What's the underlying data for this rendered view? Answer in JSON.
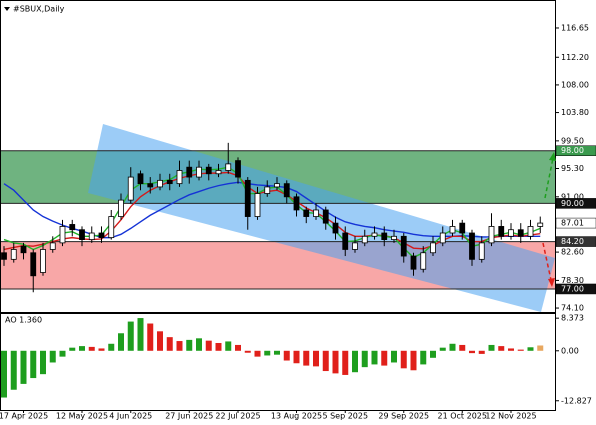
{
  "chart_data": [
    {
      "type": "candlestick",
      "title": "#SBUX,Daily",
      "categories": [
        null,
        null,
        "17 Apr 2025",
        null,
        null,
        null,
        null,
        null,
        "12 May 2025",
        null,
        null,
        null,
        null,
        "4 Jun 2025",
        null,
        null,
        null,
        null,
        null,
        "27 Jun 2025",
        null,
        null,
        null,
        null,
        "22 Jul 2025",
        null,
        null,
        null,
        null,
        null,
        "13 Aug 2025",
        null,
        null,
        null,
        null,
        "5 Sep 2025",
        null,
        null,
        null,
        null,
        null,
        "29 Sep 2025",
        null,
        null,
        null,
        null,
        null,
        "21 Oct 2025",
        null,
        null,
        null,
        null,
        "12 Nov 2025",
        null,
        null,
        null
      ],
      "open": [
        82.5,
        81.5,
        83.5,
        82.5,
        79.5,
        83,
        84,
        86.8,
        86,
        84.5,
        85.5,
        84.8,
        88,
        90.5,
        94.5,
        93,
        92.5,
        93.5,
        93,
        95.5,
        94,
        95.5,
        94.5,
        95,
        96.5,
        93.5,
        88,
        91.5,
        92.5,
        93,
        91,
        89,
        88,
        89,
        87,
        85.5,
        83,
        84,
        85,
        85.5,
        84.5,
        85,
        82,
        80,
        82.5,
        84,
        85.5,
        87,
        85.5,
        81.5,
        84,
        86.5,
        85,
        86,
        85,
        86.5
      ],
      "high": [
        83.5,
        84,
        84,
        83,
        84,
        85,
        87.5,
        87.5,
        86.5,
        86.5,
        86.5,
        89,
        91.5,
        95.5,
        95,
        94,
        94.5,
        94.5,
        96.5,
        96.5,
        96.5,
        96,
        96,
        99.2,
        97,
        94,
        92.5,
        93.5,
        94,
        93.5,
        91.5,
        89.5,
        90,
        89.5,
        88,
        86.5,
        85,
        86,
        86.5,
        86.5,
        86,
        85.5,
        82.5,
        83.5,
        85,
        86.5,
        87.5,
        87.5,
        86,
        85,
        88.5,
        87.5,
        87,
        87,
        87.5,
        88
      ],
      "low": [
        80.5,
        81,
        81.5,
        76.5,
        79,
        82.5,
        83.5,
        85,
        83.5,
        84,
        84,
        84.5,
        87.5,
        90,
        92,
        91.5,
        92,
        92,
        92.5,
        93,
        93.5,
        93.5,
        94,
        94.5,
        93,
        86,
        87.5,
        91,
        92,
        90,
        88,
        87,
        87.5,
        86,
        84.5,
        82,
        82.5,
        83.5,
        84.5,
        83.5,
        84,
        81,
        79,
        79.5,
        82,
        83.5,
        85,
        84.5,
        80.5,
        81,
        83.5,
        84.5,
        84.5,
        84,
        84.5,
        85.5
      ],
      "close": [
        81.5,
        83,
        82.5,
        79,
        83,
        84,
        86.5,
        86,
        84.5,
        85.5,
        84.8,
        88,
        90.5,
        94,
        93,
        92.5,
        93.5,
        93,
        95,
        94,
        95.5,
        94.5,
        95,
        96,
        94,
        88,
        91.5,
        92.5,
        93,
        91,
        89,
        88,
        89,
        87,
        85.5,
        83,
        84,
        85,
        85.5,
        84.5,
        85,
        82,
        80,
        82.5,
        84,
        85.5,
        86.5,
        85.5,
        81.5,
        84,
        86.5,
        85,
        86,
        85,
        86.5,
        87.01
      ],
      "candle_color": "#000000",
      "series": [
        {
          "color": "#1533d6",
          "values": [
            93,
            92,
            90.5,
            89,
            88,
            87.3,
            86.7,
            86.2,
            85.8,
            85.3,
            84.8,
            84.8,
            85.3,
            86.2,
            87.2,
            88.2,
            89,
            89.8,
            90.6,
            91.3,
            91.8,
            92.3,
            92.7,
            93,
            93.2,
            93,
            92.8,
            92.7,
            92.6,
            92.4,
            91.8,
            90.8,
            89.8,
            88.8,
            87.9,
            87.2,
            86.8,
            86.5,
            86.3,
            86,
            85.8,
            85.6,
            85.3,
            85.1,
            85,
            85,
            85,
            85.1,
            85,
            84.9,
            84.9,
            85,
            85,
            85,
            85,
            85
          ]
        },
        {
          "color": "#d41a1a",
          "values": [
            83,
            83.3,
            83.6,
            83.5,
            83.8,
            84.2,
            84.6,
            84.8,
            84.6,
            84.5,
            84.6,
            85.8,
            87.5,
            89.5,
            91,
            92,
            92.7,
            93.3,
            93.8,
            94.2,
            94.5,
            94.6,
            94.6,
            94.7,
            94.2,
            92.5,
            91.5,
            91.8,
            92,
            91.3,
            90.3,
            89.3,
            88.6,
            87.8,
            86.8,
            85.6,
            85,
            85,
            85.2,
            85.1,
            84.8,
            84,
            83.2,
            83.1,
            83.6,
            84.4,
            85,
            85,
            84.2,
            84.2,
            84.8,
            85,
            85.2,
            85,
            85.2,
            85.4
          ]
        },
        {
          "color": "#22b32a",
          "values": [
            84.5,
            84,
            83.8,
            83,
            83.6,
            84.5,
            85.5,
            85.7,
            85,
            85,
            85.2,
            87,
            89.5,
            92,
            93,
            93,
            93.3,
            93.6,
            94.5,
            94.8,
            95.2,
            95.1,
            95.2,
            95.5,
            94.5,
            91.5,
            91.5,
            92.3,
            92.5,
            91.3,
            89.8,
            88.6,
            88.5,
            87.2,
            85.8,
            84.2,
            84.3,
            84.8,
            85.2,
            85,
            84.8,
            83.2,
            81.8,
            82.5,
            83.8,
            85.2,
            86,
            85.5,
            83.5,
            83.8,
            85,
            85.3,
            85.6,
            85.2,
            85.6,
            86.2
          ]
        }
      ],
      "zones": [
        {
          "lim": [
            90,
            98
          ],
          "color": "#3f9a55"
        },
        {
          "lim": [
            77,
            84.2
          ],
          "color": "#f58a8a"
        }
      ],
      "levels": [
        {
          "value": 98,
          "label": "98.00",
          "color": "#3a9a4e",
          "text_color": "#ffffff",
          "line": true
        },
        {
          "value": 90,
          "label": "90.00",
          "color": "#111111",
          "text_color": "#ffffff",
          "line": true
        },
        {
          "value": 87.01,
          "label": "87.01",
          "color": "#ffffff",
          "text_color": "#000000",
          "line": false
        },
        {
          "value": 84.2,
          "label": "84.20",
          "color": "#333333",
          "text_color": "#ffffff",
          "line": true
        },
        {
          "value": 77,
          "label": "77.00",
          "color": "#111111",
          "text_color": "#ffffff",
          "line": true
        }
      ],
      "ylim": [
        73.5,
        120.9
      ],
      "yticks": [
        116.65,
        {
          "value": 112.2,
          "label": "112.20"
        },
        {
          "value": 108,
          "label": "108.00"
        },
        {
          "value": 103.8,
          "label": "103.80"
        },
        {
          "value": 99.5,
          "label": "99.50"
        },
        {
          "value": 95.3,
          "label": "95.30"
        },
        {
          "value": 91,
          "label": "91.00"
        },
        {
          "value": 86.8,
          "label": "86.80"
        },
        {
          "value": 82.6,
          "label": "82.60"
        },
        {
          "value": 78.3,
          "label": "78.30"
        },
        {
          "value": 74.1,
          "label": "74.10"
        }
      ]
    },
    {
      "type": "bar",
      "title": "AO 1.360",
      "values": [
        -12,
        -10,
        -8.5,
        -7,
        -6,
        -3,
        -1.5,
        0.8,
        1.2,
        1.0,
        0.6,
        1.8,
        4.5,
        7.5,
        8.4,
        7,
        5,
        3.5,
        2.5,
        2.8,
        3.2,
        2.6,
        2.0,
        2.4,
        1.5,
        -0.5,
        -1.5,
        -1.2,
        -1.0,
        -2.5,
        -3.2,
        -3.8,
        -4.0,
        -5.2,
        -5.8,
        -6.2,
        -5.5,
        -4.2,
        -3.5,
        -3.8,
        -3.0,
        -4.5,
        -5.0,
        -3.5,
        -1.8,
        0.8,
        1.8,
        1.5,
        -0.6,
        -0.8,
        1.5,
        1.2,
        0.6,
        0.3,
        0.9,
        1.36
      ],
      "up_color": "#1e9e1e",
      "down_color": "#e0201a",
      "last_color": "#e8a860",
      "ylim": [
        -15.2,
        9.7
      ],
      "yticks": [
        8.373,
        {
          "value": 0,
          "label": "0.00"
        },
        -12.827
      ]
    }
  ]
}
